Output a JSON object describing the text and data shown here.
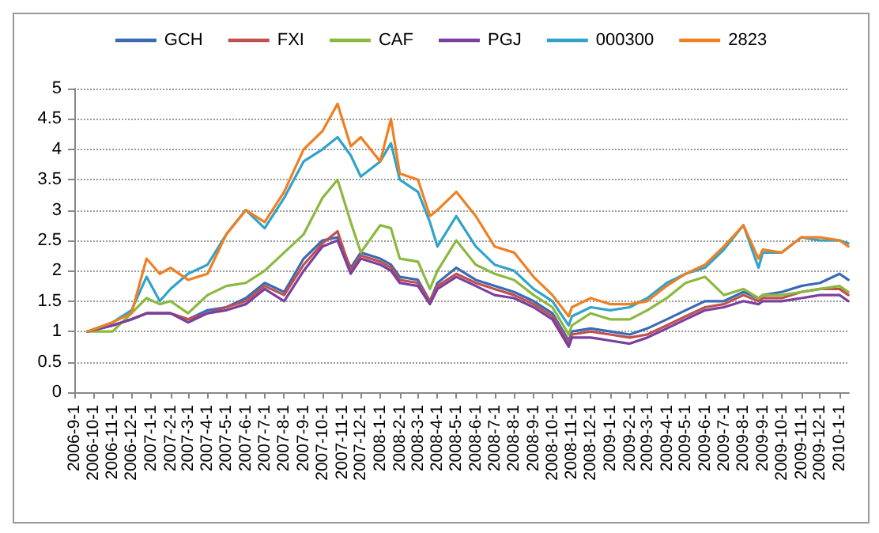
{
  "chart_data": {
    "type": "line",
    "x": [
      "2006-09-22",
      "2006-11-01",
      "2006-12-01",
      "2006-12-25",
      "2007-01-15",
      "2007-02-01",
      "2007-03-01",
      "2007-04-01",
      "2007-05-01",
      "2007-06-01",
      "2007-07-01",
      "2007-08-01",
      "2007-09-01",
      "2007-10-01",
      "2007-10-25",
      "2007-11-15",
      "2007-12-01",
      "2008-01-01",
      "2008-01-18",
      "2008-02-01",
      "2008-03-01",
      "2008-03-20",
      "2008-04-01",
      "2008-05-01",
      "2008-06-01",
      "2008-07-01",
      "2008-08-01",
      "2008-09-01",
      "2008-10-01",
      "2008-10-27",
      "2008-11-01",
      "2008-12-01",
      "2009-01-01",
      "2009-02-01",
      "2009-03-01",
      "2009-04-01",
      "2009-05-01",
      "2009-06-01",
      "2009-07-01",
      "2009-08-01",
      "2009-08-25",
      "2009-09-01",
      "2009-10-01",
      "2009-11-01",
      "2009-12-01",
      "2010-01-01",
      "2010-01-15"
    ],
    "series": [
      {
        "name": "GCH",
        "color": "#3a6ab4",
        "values": [
          1.0,
          1.1,
          1.2,
          1.3,
          1.3,
          1.3,
          1.2,
          1.35,
          1.4,
          1.55,
          1.8,
          1.65,
          2.2,
          2.5,
          2.55,
          2.05,
          2.3,
          2.2,
          2.1,
          1.9,
          1.85,
          1.5,
          1.8,
          2.05,
          1.85,
          1.75,
          1.65,
          1.5,
          1.3,
          0.85,
          1.0,
          1.05,
          1.0,
          0.95,
          1.05,
          1.2,
          1.35,
          1.5,
          1.5,
          1.65,
          1.55,
          1.6,
          1.65,
          1.75,
          1.8,
          1.95,
          1.85
        ]
      },
      {
        "name": "FXI",
        "color": "#c0504d",
        "values": [
          1.0,
          1.1,
          1.2,
          1.3,
          1.3,
          1.3,
          1.2,
          1.3,
          1.4,
          1.5,
          1.75,
          1.6,
          2.1,
          2.45,
          2.65,
          2.0,
          2.25,
          2.15,
          2.05,
          1.85,
          1.8,
          1.5,
          1.75,
          1.95,
          1.8,
          1.7,
          1.6,
          1.45,
          1.25,
          0.8,
          0.95,
          1.0,
          0.95,
          0.9,
          0.95,
          1.1,
          1.25,
          1.4,
          1.45,
          1.6,
          1.5,
          1.55,
          1.55,
          1.65,
          1.7,
          1.7,
          1.6
        ]
      },
      {
        "name": "CAF",
        "color": "#8bb83e",
        "values": [
          1.0,
          1.0,
          1.3,
          1.55,
          1.45,
          1.5,
          1.3,
          1.6,
          1.75,
          1.8,
          2.0,
          2.3,
          2.6,
          3.2,
          3.5,
          2.8,
          2.3,
          2.75,
          2.7,
          2.2,
          2.15,
          1.7,
          2.0,
          2.5,
          2.1,
          1.95,
          1.85,
          1.6,
          1.4,
          0.95,
          1.1,
          1.3,
          1.2,
          1.2,
          1.35,
          1.55,
          1.8,
          1.9,
          1.6,
          1.7,
          1.55,
          1.6,
          1.6,
          1.65,
          1.7,
          1.75,
          1.65
        ]
      },
      {
        "name": "PGJ",
        "color": "#7a3fa0",
        "values": [
          1.0,
          1.1,
          1.2,
          1.3,
          1.3,
          1.3,
          1.15,
          1.3,
          1.35,
          1.45,
          1.7,
          1.5,
          2.0,
          2.4,
          2.5,
          1.95,
          2.2,
          2.1,
          2.0,
          1.8,
          1.75,
          1.45,
          1.7,
          1.9,
          1.75,
          1.6,
          1.55,
          1.4,
          1.2,
          0.75,
          0.9,
          0.9,
          0.85,
          0.8,
          0.9,
          1.05,
          1.2,
          1.35,
          1.4,
          1.5,
          1.45,
          1.5,
          1.5,
          1.55,
          1.6,
          1.6,
          1.5
        ]
      },
      {
        "name": "000300",
        "color": "#31a3c8",
        "values": [
          1.0,
          1.15,
          1.35,
          1.9,
          1.5,
          1.7,
          1.95,
          2.1,
          2.6,
          3.0,
          2.7,
          3.2,
          3.8,
          4.0,
          4.2,
          3.9,
          3.55,
          3.8,
          4.1,
          3.5,
          3.3,
          2.8,
          2.4,
          2.9,
          2.4,
          2.1,
          2.0,
          1.7,
          1.5,
          1.1,
          1.25,
          1.4,
          1.35,
          1.4,
          1.55,
          1.8,
          1.95,
          2.05,
          2.35,
          2.75,
          2.05,
          2.3,
          2.3,
          2.55,
          2.5,
          2.5,
          2.45
        ]
      },
      {
        "name": "2823",
        "color": "#f07f22",
        "values": [
          1.0,
          1.15,
          1.3,
          2.2,
          1.95,
          2.05,
          1.85,
          1.95,
          2.6,
          3.0,
          2.8,
          3.3,
          4.0,
          4.3,
          4.75,
          4.05,
          4.2,
          3.8,
          4.5,
          3.6,
          3.5,
          2.9,
          3.0,
          3.3,
          2.9,
          2.4,
          2.3,
          1.9,
          1.6,
          1.25,
          1.4,
          1.55,
          1.45,
          1.45,
          1.5,
          1.75,
          1.95,
          2.1,
          2.4,
          2.75,
          2.2,
          2.35,
          2.3,
          2.55,
          2.55,
          2.5,
          2.4
        ]
      }
    ],
    "xlim": [
      "2006-09-01",
      "2010-01-16"
    ],
    "xticks": [
      {
        "value": "2006-09-01",
        "label": "2006-9-1"
      },
      {
        "value": "2006-10-01",
        "label": "2006-10-1"
      },
      {
        "value": "2006-11-01",
        "label": "2006-11-1"
      },
      {
        "value": "2006-12-01",
        "label": "2006-12-1"
      },
      {
        "value": "2007-01-01",
        "label": "2007-1-1"
      },
      {
        "value": "2007-02-01",
        "label": "2007-2-1"
      },
      {
        "value": "2007-03-01",
        "label": "2007-3-1"
      },
      {
        "value": "2007-04-01",
        "label": "2007-4-1"
      },
      {
        "value": "2007-05-01",
        "label": "2007-5-1"
      },
      {
        "value": "2007-06-01",
        "label": "2007-6-1"
      },
      {
        "value": "2007-07-01",
        "label": "2007-7-1"
      },
      {
        "value": "2007-08-01",
        "label": "2007-8-1"
      },
      {
        "value": "2007-09-01",
        "label": "2007-9-1"
      },
      {
        "value": "2007-10-01",
        "label": "2007-10-1"
      },
      {
        "value": "2007-11-01",
        "label": "2007-11-1"
      },
      {
        "value": "2007-12-01",
        "label": "2007-12-1"
      },
      {
        "value": "2008-01-01",
        "label": "2008-1-1"
      },
      {
        "value": "2008-02-01",
        "label": "2008-2-1"
      },
      {
        "value": "2008-03-01",
        "label": "2008-3-1"
      },
      {
        "value": "2008-04-01",
        "label": "2008-4-1"
      },
      {
        "value": "2008-05-01",
        "label": "2008-5-1"
      },
      {
        "value": "2008-06-01",
        "label": "2008-6-1"
      },
      {
        "value": "2008-07-01",
        "label": "2008-7-1"
      },
      {
        "value": "2008-08-01",
        "label": "2008-8-1"
      },
      {
        "value": "2008-09-01",
        "label": "2008-9-1"
      },
      {
        "value": "2008-10-01",
        "label": "2008-10-1"
      },
      {
        "value": "2008-11-01",
        "label": "2008-11-1"
      },
      {
        "value": "2008-12-01",
        "label": "2008-12-1"
      },
      {
        "value": "2009-01-01",
        "label": "2009-1-1"
      },
      {
        "value": "2009-02-01",
        "label": "2009-2-1"
      },
      {
        "value": "2009-03-01",
        "label": "2009-3-1"
      },
      {
        "value": "2009-04-01",
        "label": "2009-4-1"
      },
      {
        "value": "2009-05-01",
        "label": "2009-5-1"
      },
      {
        "value": "2009-06-01",
        "label": "2009-6-1"
      },
      {
        "value": "2009-07-01",
        "label": "2009-7-1"
      },
      {
        "value": "2009-08-01",
        "label": "2009-8-1"
      },
      {
        "value": "2009-09-01",
        "label": "2009-9-1"
      },
      {
        "value": "2009-10-01",
        "label": "2009-10-1"
      },
      {
        "value": "2009-11-01",
        "label": "2009-11-1"
      },
      {
        "value": "2009-12-01",
        "label": "2009-12-1"
      },
      {
        "value": "2010-01-01",
        "label": "2010-1-1"
      }
    ],
    "ylim": [
      0,
      5
    ],
    "yticks": [
      0,
      0.5,
      1,
      1.5,
      2,
      2.5,
      3,
      3.5,
      4,
      4.5,
      5
    ],
    "grid": "y",
    "legend": "top",
    "marker": "none",
    "line_style": "solid"
  }
}
